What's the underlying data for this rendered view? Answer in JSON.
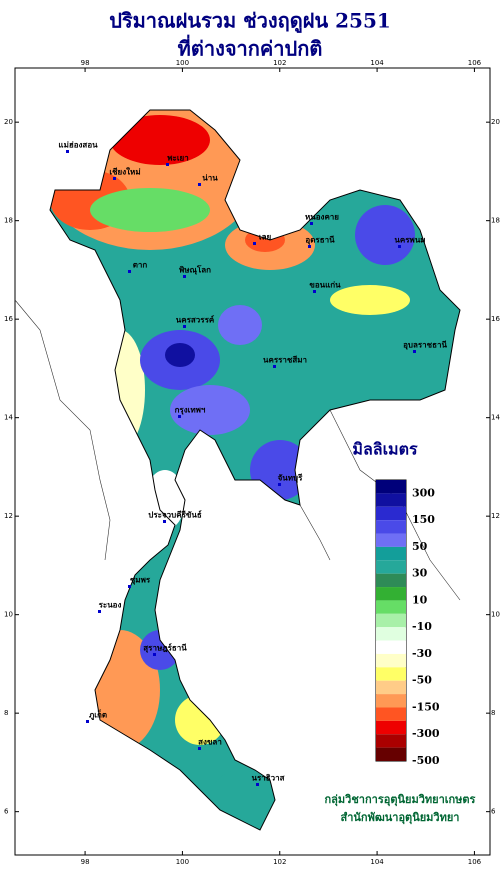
{
  "title": "ปริมาณฝนรวม ช่วงฤดูฝน 2551",
  "subtitle": "ที่ต่างจากค่าปกติ",
  "map": {
    "xlim": [
      96.56,
      106.32
    ],
    "ylim": [
      5.12,
      21.1
    ],
    "xticks": [
      98,
      100,
      102,
      104,
      106
    ],
    "yticks": [
      6,
      8,
      10,
      12,
      14,
      16,
      18,
      20
    ],
    "places": [
      "แม่ฮ่องสอน",
      "เชียงใหม่",
      "พะเยา",
      "น่าน",
      "เลย",
      "หนองคาย",
      "อุดรธานี",
      "นครพนม",
      "ขอนแก่น",
      "ตาก",
      "พิษณุโลก",
      "นครสวรรค์",
      "กรุงเทพฯ",
      "นครราชสีมา",
      "อุบลราชธานี",
      "จันทบุรี",
      "ประจวบคีรีขันธ์",
      "ชุมพร",
      "ระนอง",
      "สุราษฎร์ธานี",
      "ภูเก็ต",
      "สงขลา",
      "นราธิวาส"
    ]
  },
  "legend": {
    "title": "มิลลิเมตร",
    "colors": [
      "#00007a",
      "#1010a0",
      "#2a2ad0",
      "#4a4ae8",
      "#6f6ff5",
      "#139e9a",
      "#26a89a",
      "#2e8b57",
      "#33b033",
      "#66dd66",
      "#a8f0a8",
      "#e0ffe0",
      "#ffffff",
      "#ffffc8",
      "#ffff66",
      "#ffcc88",
      "#ff9955",
      "#ff5522",
      "#ee0000",
      "#aa0000",
      "#660000"
    ],
    "labels": [
      300,
      150,
      50,
      30,
      10,
      -10,
      -30,
      -50,
      -150,
      -300,
      -500
    ]
  },
  "credit": [
    "กลุ่มวิชาการอุตุนิยมวิทยาเกษตร",
    "สำนักพัฒนาอุตุนิยมวิทยา"
  ]
}
